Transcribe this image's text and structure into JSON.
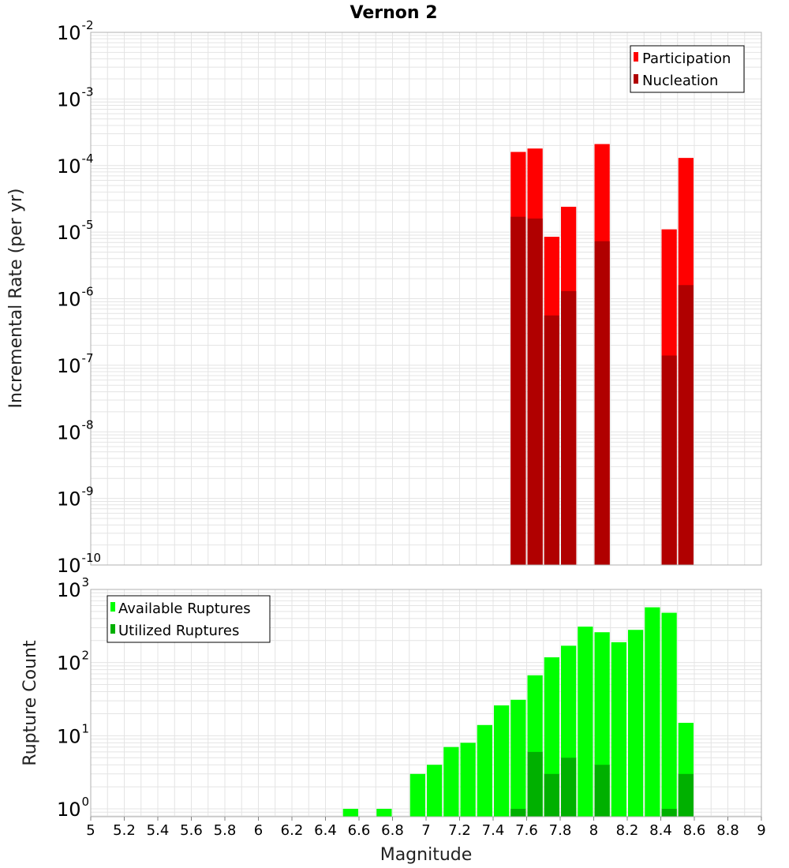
{
  "title": "Vernon 2",
  "colors": {
    "participation": "#ff0000",
    "nucleation": "#b00000",
    "available": "#00ff00",
    "utilized": "#00b000",
    "grid": "#e4e4e4",
    "frame": "#b0b0b0"
  },
  "chart_data": [
    {
      "type": "bar",
      "name": "rates",
      "xlabel": "Magnitude",
      "ylabel": "Incremental Rate (per yr)",
      "xlim": [
        5,
        9
      ],
      "ylim": [
        1e-10,
        0.01
      ],
      "yscale": "log",
      "y_tick_exponents": [
        "-10",
        "-9",
        "-8",
        "-7",
        "-6",
        "-5",
        "-4",
        "-3",
        "-2"
      ],
      "legend": [
        "Participation",
        "Nucleation"
      ],
      "legend_position": "top-right",
      "bar_width": 0.1,
      "x": [
        7.55,
        7.65,
        7.75,
        7.85,
        8.05,
        8.45,
        8.55
      ],
      "series": [
        {
          "name": "Participation",
          "values": [
            0.00016,
            0.00018,
            8.5e-06,
            2.4e-05,
            0.00021,
            1.1e-05,
            0.00013
          ]
        },
        {
          "name": "Nucleation",
          "values": [
            1.7e-05,
            1.6e-05,
            5.6e-07,
            1.3e-06,
            7.3e-06,
            1.4e-07,
            1.6e-06
          ]
        }
      ]
    },
    {
      "type": "bar",
      "name": "ruptures",
      "xlabel": "Magnitude",
      "ylabel": "Rupture Count",
      "xlim": [
        5,
        9
      ],
      "ylim": [
        0.78,
        1000
      ],
      "yscale": "log",
      "y_tick_exponents": [
        "0",
        "1",
        "2",
        "3"
      ],
      "legend": [
        "Available Ruptures",
        "Utilized Ruptures"
      ],
      "legend_position": "top-left",
      "x_ticks": [
        "5",
        "5.2",
        "5.4",
        "5.6",
        "5.8",
        "6",
        "6.2",
        "6.4",
        "6.6",
        "6.8",
        "7",
        "7.2",
        "7.4",
        "7.6",
        "7.8",
        "8",
        "8.2",
        "8.4",
        "8.6",
        "8.8",
        "9"
      ],
      "bar_width": 0.1,
      "x": [
        6.55,
        6.75,
        6.95,
        7.05,
        7.15,
        7.25,
        7.35,
        7.45,
        7.55,
        7.65,
        7.75,
        7.85,
        7.95,
        8.05,
        8.15,
        8.25,
        8.35,
        8.45,
        8.55
      ],
      "series": [
        {
          "name": "Available Ruptures",
          "values": [
            1,
            1,
            3,
            4,
            7,
            8,
            14,
            26,
            31,
            67,
            118,
            170,
            310,
            260,
            190,
            280,
            570,
            480,
            15
          ]
        },
        {
          "name": "Utilized Ruptures",
          "values": [
            0,
            0,
            0,
            0,
            0,
            0,
            0,
            0,
            1,
            6,
            3,
            5,
            0,
            4,
            0,
            0,
            0,
            1,
            3
          ]
        }
      ]
    }
  ]
}
